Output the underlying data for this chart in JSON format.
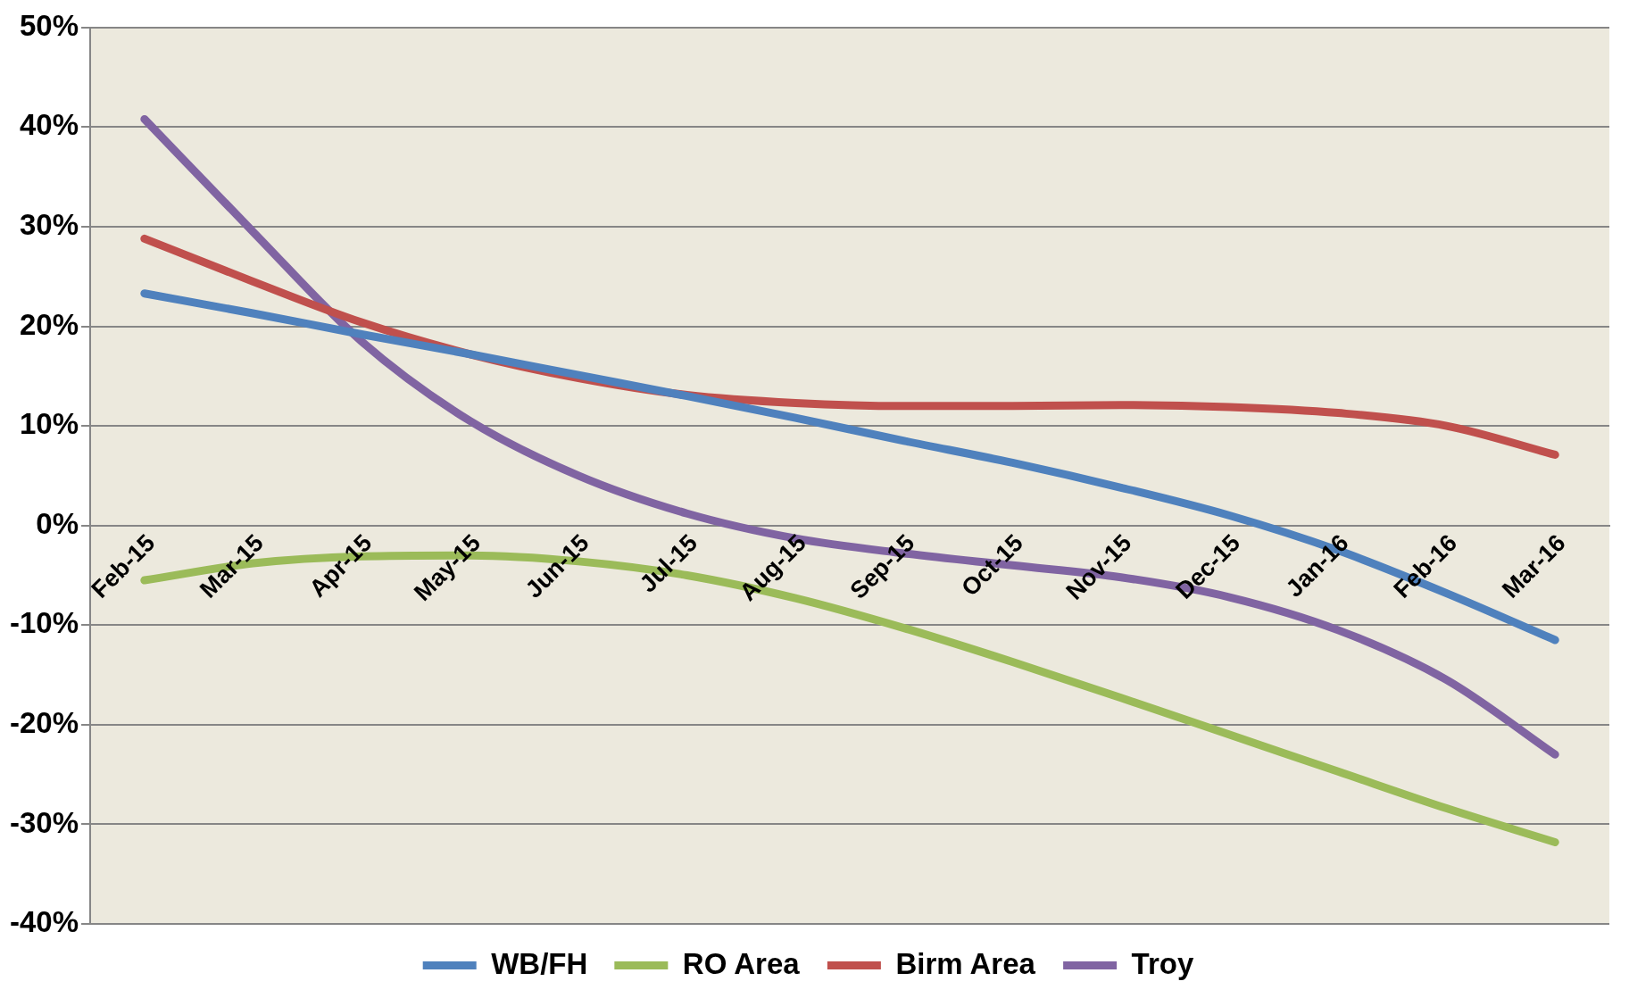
{
  "chart_data": {
    "type": "line",
    "categories": [
      "Feb-15",
      "Mar-15",
      "Apr-15",
      "May-15",
      "Jun-15",
      "Jul-15",
      "Aug-15",
      "Sep-15",
      "Oct-15",
      "Nov-15",
      "Dec-15",
      "Jan-16",
      "Feb-16",
      "Mar-16"
    ],
    "series": [
      {
        "name": "WB/FH",
        "color": "#4f81bd",
        "values": [
          23.3,
          21.3,
          19.2,
          17.2,
          15.1,
          13,
          10.8,
          8.5,
          6.3,
          3.8,
          1,
          -2.5,
          -6.8,
          -11.5
        ]
      },
      {
        "name": "RO Area",
        "color": "#9bbb59",
        "values": [
          -5.5,
          -3.8,
          -3.1,
          -3,
          -3.6,
          -5,
          -7.3,
          -10.3,
          -13.7,
          -17.3,
          -21,
          -24.7,
          -28.4,
          -31.8
        ]
      },
      {
        "name": "Birm Area",
        "color": "#c0504d",
        "values": [
          28.8,
          24.5,
          20.4,
          17.2,
          14.8,
          13.1,
          12.3,
          12,
          12,
          12.1,
          11.9,
          11.3,
          10,
          7.1
        ]
      },
      {
        "name": "Troy",
        "color": "#8064a2",
        "values": [
          40.8,
          29.5,
          18.5,
          10.5,
          5,
          1.2,
          -1.3,
          -2.8,
          -4,
          -5.2,
          -7.2,
          -10.5,
          -15.5,
          -23
        ]
      }
    ],
    "ylim": [
      -40,
      50
    ],
    "yticks": [
      {
        "value": -40,
        "label": "-40%"
      },
      {
        "value": -30,
        "label": "-30%"
      },
      {
        "value": -20,
        "label": "-20%"
      },
      {
        "value": -10,
        "label": "-10%"
      },
      {
        "value": 0,
        "label": "0%"
      },
      {
        "value": 10,
        "label": "10%"
      },
      {
        "value": 20,
        "label": "20%"
      },
      {
        "value": 30,
        "label": "30%"
      },
      {
        "value": 40,
        "label": "40%"
      },
      {
        "value": 50,
        "label": "50%"
      }
    ],
    "grid": "y",
    "legend": "bottom",
    "marker": "none",
    "line_style": "solid"
  }
}
